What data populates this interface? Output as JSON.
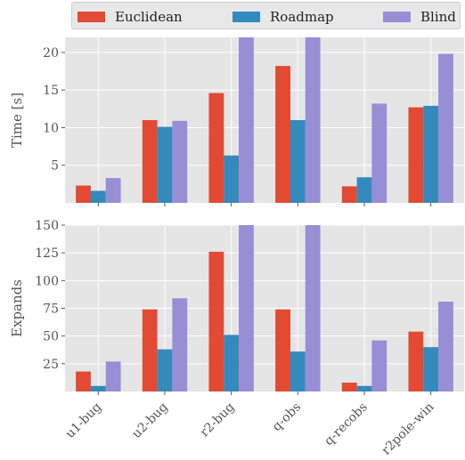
{
  "legend": {
    "position": "top",
    "items": [
      {
        "label": "Euclidean",
        "color": "#E24A33"
      },
      {
        "label": "Roadmap",
        "color": "#348ABD"
      },
      {
        "label": "Blind",
        "color": "#988ED5"
      }
    ]
  },
  "chart_data": [
    {
      "type": "bar",
      "categories": [
        "u1-bug",
        "u2-bug",
        "r2-bug",
        "q-obs",
        "q-recobs",
        "r2pole-win"
      ],
      "series": [
        {
          "name": "Euclidean",
          "values": [
            2.3,
            11.0,
            14.6,
            18.2,
            2.2,
            12.7
          ]
        },
        {
          "name": "Roadmap",
          "values": [
            1.6,
            10.1,
            6.3,
            11.0,
            3.4,
            12.9
          ]
        },
        {
          "name": "Blind",
          "values": [
            3.3,
            10.9,
            22.5,
            22.5,
            13.2,
            19.8
          ]
        }
      ],
      "ylabel": "Time [s]",
      "ylim": [
        0,
        22
      ],
      "yticks": [
        "5",
        "10",
        "15",
        "20"
      ],
      "grid": true,
      "show_xticklabels": false
    },
    {
      "type": "bar",
      "categories": [
        "u1-bug",
        "u2-bug",
        "r2-bug",
        "q-obs",
        "q-recobs",
        "r2pole-win"
      ],
      "series": [
        {
          "name": "Euclidean",
          "values": [
            18,
            74,
            126,
            74,
            8,
            54
          ]
        },
        {
          "name": "Roadmap",
          "values": [
            5,
            38,
            51,
            36,
            5,
            40
          ]
        },
        {
          "name": "Blind",
          "values": [
            27,
            84,
            155,
            155,
            46,
            81
          ]
        }
      ],
      "ylabel": "Expands",
      "ylim": [
        0,
        150
      ],
      "yticks": [
        "25",
        "50",
        "75",
        "100",
        "125",
        "150"
      ],
      "grid": true,
      "show_xticklabels": true
    }
  ]
}
